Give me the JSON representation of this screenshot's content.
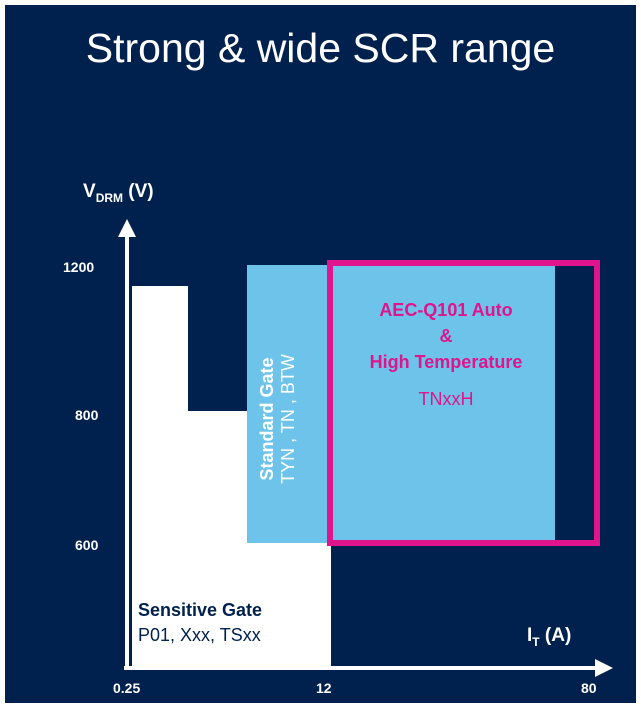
{
  "title": "Strong & wide SCR range",
  "y_axis": {
    "label_main": "V",
    "label_sub": "DRM",
    "label_unit": " (V)",
    "ticks": [
      "1200",
      "800",
      "600"
    ]
  },
  "x_axis": {
    "label_main": "I",
    "label_sub": "T",
    "label_unit": " (A)",
    "ticks": [
      "0.25",
      "12",
      "80"
    ]
  },
  "sensitive": {
    "title": "Sensitive Gate",
    "parts": "P01, Xxx, TSxx"
  },
  "standard": {
    "title": "Standard Gate",
    "parts": " TYN , TN , BTW"
  },
  "automotive": {
    "line1": "AEC-Q101 Auto",
    "line2": "&",
    "line3": "High Temperature",
    "part": "TNxxH"
  },
  "colors": {
    "background": "#00214d",
    "standard_fill": "#6ec3ea",
    "auto_frame": "#e0148c",
    "white": "#ffffff"
  }
}
